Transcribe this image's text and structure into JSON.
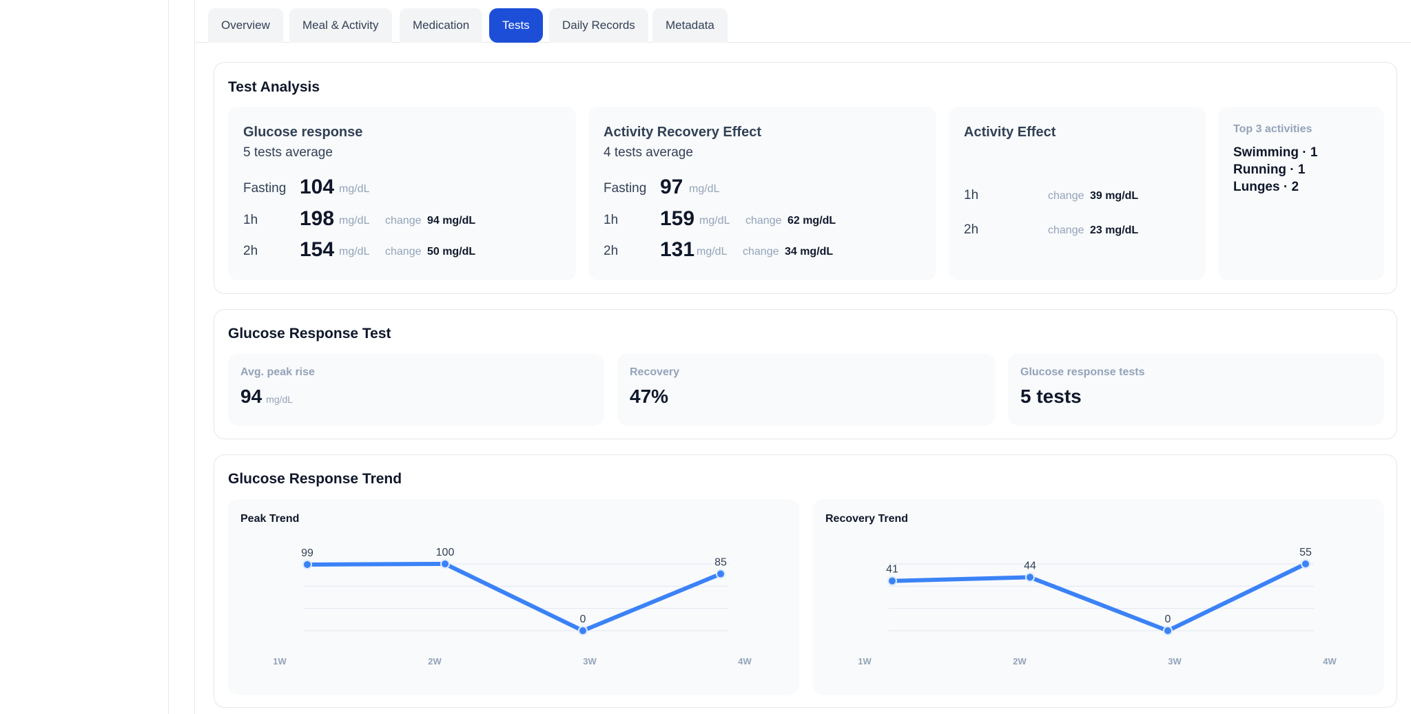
{
  "tabs": [
    {
      "label": "Overview",
      "active": false
    },
    {
      "label": "Meal & Activity",
      "active": false
    },
    {
      "label": "Medication",
      "active": false
    },
    {
      "label": "Tests",
      "active": true
    },
    {
      "label": "Daily Records",
      "active": false
    },
    {
      "label": "Metadata",
      "active": false
    }
  ],
  "test_analysis": {
    "title": "Test Analysis",
    "glucose_response": {
      "title": "Glucose response",
      "subtitle": "5 tests average",
      "rows": [
        {
          "label": "Fasting",
          "value": "104",
          "unit": "mg/dL",
          "change_label": "",
          "change_value": ""
        },
        {
          "label": "1h",
          "value": "198",
          "unit": "mg/dL",
          "change_label": "change",
          "change_value": "94 mg/dL"
        },
        {
          "label": "2h",
          "value": "154",
          "unit": "mg/dL",
          "change_label": "change",
          "change_value": "50 mg/dL"
        }
      ]
    },
    "activity_recovery": {
      "title": "Activity Recovery Effect",
      "subtitle": "4 tests average",
      "rows": [
        {
          "label": "Fasting",
          "value": "97",
          "unit": "mg/dL",
          "change_label": "",
          "change_value": ""
        },
        {
          "label": "1h",
          "value": "159",
          "unit": "mg/dL",
          "change_label": "change",
          "change_value": "62 mg/dL"
        },
        {
          "label": "2h",
          "value": "131",
          "unit": "mg/dL",
          "change_label": "change",
          "change_value": "34 mg/dL"
        }
      ]
    },
    "activity_effect": {
      "title": "Activity Effect",
      "rows": [
        {
          "label": "1h",
          "change_label": "change",
          "change_value": "39 mg/dL"
        },
        {
          "label": "2h",
          "change_label": "change",
          "change_value": "23 mg/dL"
        }
      ]
    },
    "top_activities": {
      "title": "Top 3 activities",
      "items": [
        "Swimming · 1",
        "Running · 1",
        "Lunges · 2"
      ]
    }
  },
  "glucose_response_test": {
    "title": "Glucose Response Test",
    "stats": [
      {
        "label": "Avg. peak rise",
        "value": "94",
        "unit": "mg/dL"
      },
      {
        "label": "Recovery",
        "value": "47%",
        "unit": ""
      },
      {
        "label": "Glucose response tests",
        "value": "5 tests",
        "unit": ""
      }
    ]
  },
  "glucose_response_trend": {
    "title": "Glucose Response Trend"
  },
  "colors": {
    "accent": "#1d4ed8",
    "line": "#3b82f6"
  },
  "chart_data": [
    {
      "type": "line",
      "title": "Peak Trend",
      "categories": [
        "1W",
        "2W",
        "3W",
        "4W"
      ],
      "values": [
        99,
        100,
        0,
        85
      ],
      "ylim": [
        0,
        100
      ],
      "grid": true
    },
    {
      "type": "line",
      "title": "Recovery Trend",
      "categories": [
        "1W",
        "2W",
        "3W",
        "4W"
      ],
      "values": [
        41,
        44,
        0,
        55
      ],
      "ylim": [
        0,
        55
      ],
      "grid": true
    }
  ]
}
